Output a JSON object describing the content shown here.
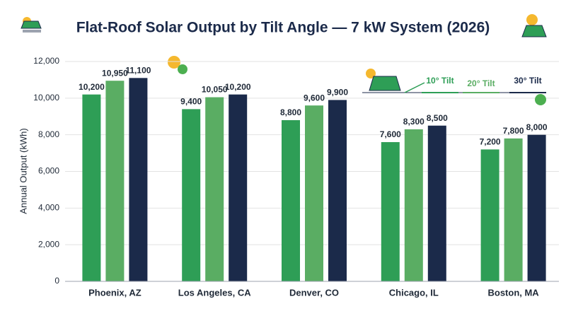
{
  "chart_data": {
    "type": "bar",
    "title": "Flat-Roof Solar Output by Tilt Angle — 7 kW System (2026)",
    "y_label": "Annual Output (kWh)",
    "categories": [
      "Phoenix, AZ",
      "Los Angeles, CA",
      "Denver, CO",
      "Chicago, IL",
      "Boston, MA"
    ],
    "series": [
      {
        "name": "10° Tilt",
        "color": "#2e9e56",
        "values": [
          10200,
          9400,
          8800,
          7600,
          7200
        ],
        "value_labels": [
          "10,200",
          "9,400",
          "8,800",
          "7,600",
          "7,200"
        ]
      },
      {
        "name": "20° Tilt",
        "color": "#5aad63",
        "values": [
          10950,
          10050,
          9600,
          8300,
          7800
        ],
        "value_labels": [
          "10,950",
          "10,050",
          "9,600",
          "8,300",
          "7,800"
        ]
      },
      {
        "name": "30° Tilt",
        "color": "#1b2a4a",
        "values": [
          11100,
          10200,
          9900,
          8500,
          8000
        ],
        "value_labels": [
          "11,100",
          "10,200",
          "9,900",
          "8,500",
          "8,000"
        ]
      }
    ],
    "ylim": [
      0,
      12000
    ],
    "yticks": [
      0,
      {
        "value": 2000,
        "label": "2,000"
      },
      {
        "value": 4000,
        "label": "4,000"
      },
      {
        "value": 6000,
        "label": "6,000"
      },
      {
        "value": 8000,
        "label": "8,000"
      },
      {
        "value": 10000,
        "label": "10,000"
      },
      {
        "value": 12000,
        "label": "12,000"
      }
    ],
    "grid": true,
    "legend": "top-right"
  }
}
